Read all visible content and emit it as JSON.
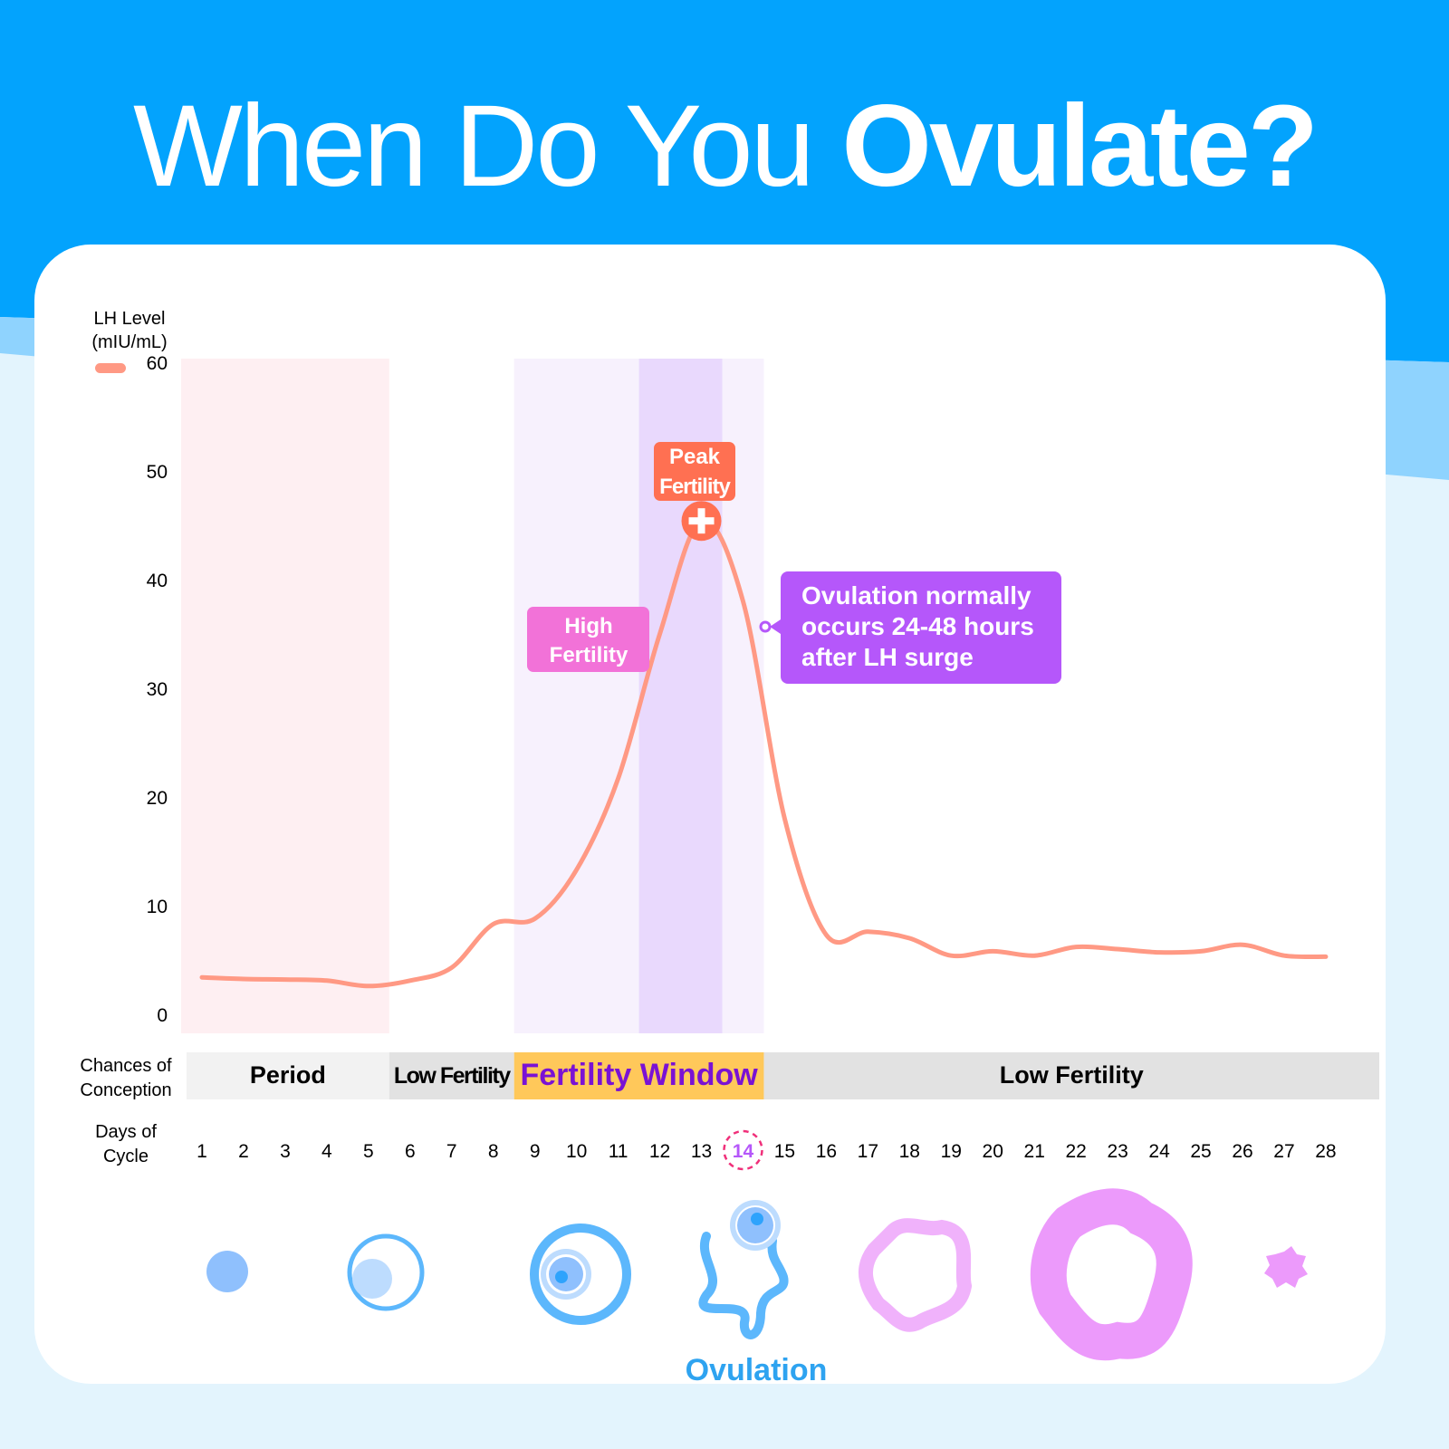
{
  "title": {
    "thin": "When Do You ",
    "bold": "Ovulate?"
  },
  "colors": {
    "header": "#03a3fd",
    "line": "#ff9984",
    "peak": "#ff7052",
    "high": "#f272d8",
    "note": "#b557fa",
    "window": "#ffc85a",
    "window_text": "#7a12d4",
    "period_band": "#feeff2",
    "window_band": "#f7f1fd",
    "peak_band": "#e9d9fd"
  },
  "chart_data": {
    "type": "line",
    "ylabel": "LH Level (mIU/mL)",
    "ylabel_lines": [
      "LH Level",
      "(mIU/mL)"
    ],
    "ylim": [
      0,
      60
    ],
    "yticks": [
      0,
      10,
      20,
      30,
      40,
      50,
      60
    ],
    "xlabel_lines": [
      "Days of",
      "Cycle"
    ],
    "x": [
      1,
      2,
      3,
      4,
      5,
      6,
      7,
      8,
      9,
      10,
      11,
      12,
      13,
      14,
      15,
      16,
      17,
      18,
      19,
      20,
      21,
      22,
      23,
      24,
      25,
      26,
      27,
      28
    ],
    "series": [
      {
        "name": "LH Level",
        "values": [
          3.4,
          3.25,
          3.2,
          3.1,
          2.6,
          3.1,
          4.3,
          8.3,
          8.8,
          13.3,
          21.7,
          35,
          45.4,
          38,
          18,
          7.3,
          7.6,
          7,
          5.4,
          5.8,
          5.4,
          6.2,
          6,
          5.7,
          5.8,
          6.4,
          5.4,
          5.3
        ]
      }
    ],
    "highlight_day": 14,
    "conception_label_lines": [
      "Chances of",
      "Conception"
    ],
    "phases": [
      {
        "label": "Period",
        "start": 1,
        "end": 5
      },
      {
        "label": "Low Fertility",
        "start": 6,
        "end": 8
      },
      {
        "label": "Fertility Window",
        "start": 9,
        "end": 14
      },
      {
        "label": "Low Fertility",
        "start": 15,
        "end": 28
      }
    ],
    "peak_band": {
      "start": 12,
      "end": 13
    },
    "annotations": {
      "peak": [
        "Peak",
        "Fertility"
      ],
      "high": [
        "High",
        "Fertility"
      ],
      "note": [
        "Ovulation normally",
        "occurs 24-48 hours",
        "after LH surge"
      ]
    }
  },
  "ovulation_label": "Ovulation"
}
